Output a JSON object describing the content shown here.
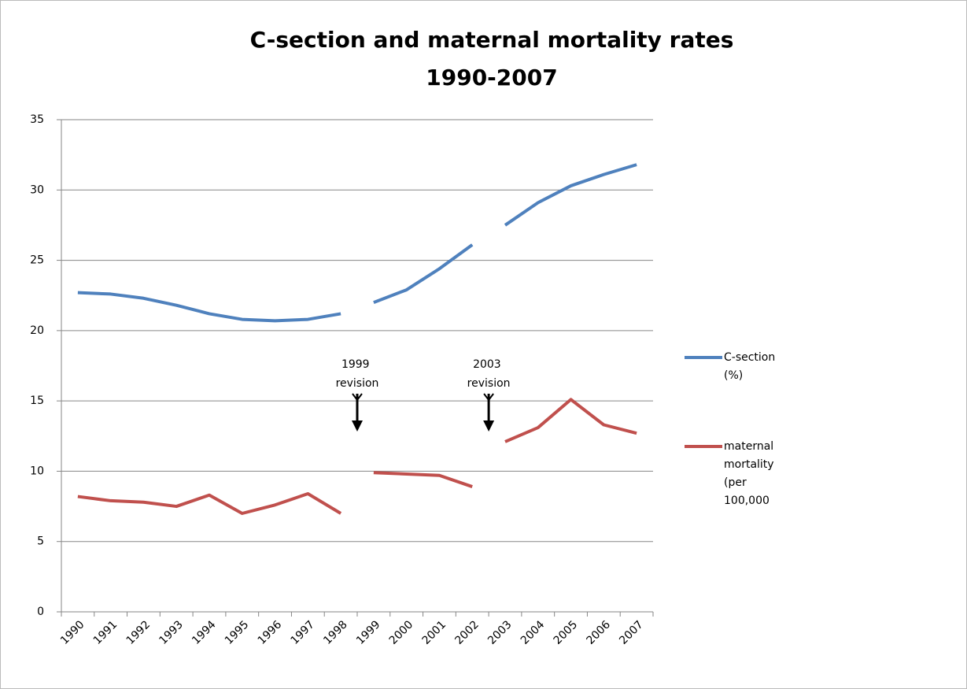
{
  "chart_data": {
    "type": "line",
    "title": [
      "C-section and maternal mortality rates",
      "1990-2007"
    ],
    "categories": [
      "1990",
      "1991",
      "1992",
      "1993",
      "1994",
      "1995",
      "1996",
      "1997",
      "1998",
      "1999",
      "2000",
      "2001",
      "2002",
      "2003",
      "2004",
      "2005",
      "2006",
      "2007"
    ],
    "series": [
      {
        "name": "C-section (%)",
        "color": "#4f81bd",
        "values": [
          22.7,
          22.6,
          22.3,
          21.8,
          21.2,
          20.8,
          20.7,
          20.8,
          21.2,
          22.0,
          22.9,
          24.4,
          26.1,
          27.5,
          29.1,
          30.3,
          31.1,
          31.8
        ]
      },
      {
        "name": "maternal mortality (per 100,000",
        "color": "#c0504d",
        "values": [
          8.2,
          7.9,
          7.8,
          7.5,
          8.3,
          7.0,
          7.6,
          8.4,
          7.0,
          9.9,
          9.8,
          9.7,
          8.9,
          12.1,
          13.1,
          15.1,
          13.3,
          12.7
        ]
      }
    ],
    "annotations": [
      {
        "text": "1999 revision",
        "x": "1999"
      },
      {
        "text": "2003 revision",
        "x": "2003"
      }
    ],
    "ylim": [
      0,
      35
    ],
    "yticks": [
      0,
      5,
      10,
      15,
      20,
      25,
      30,
      35
    ],
    "grid": true,
    "legend": "right"
  }
}
